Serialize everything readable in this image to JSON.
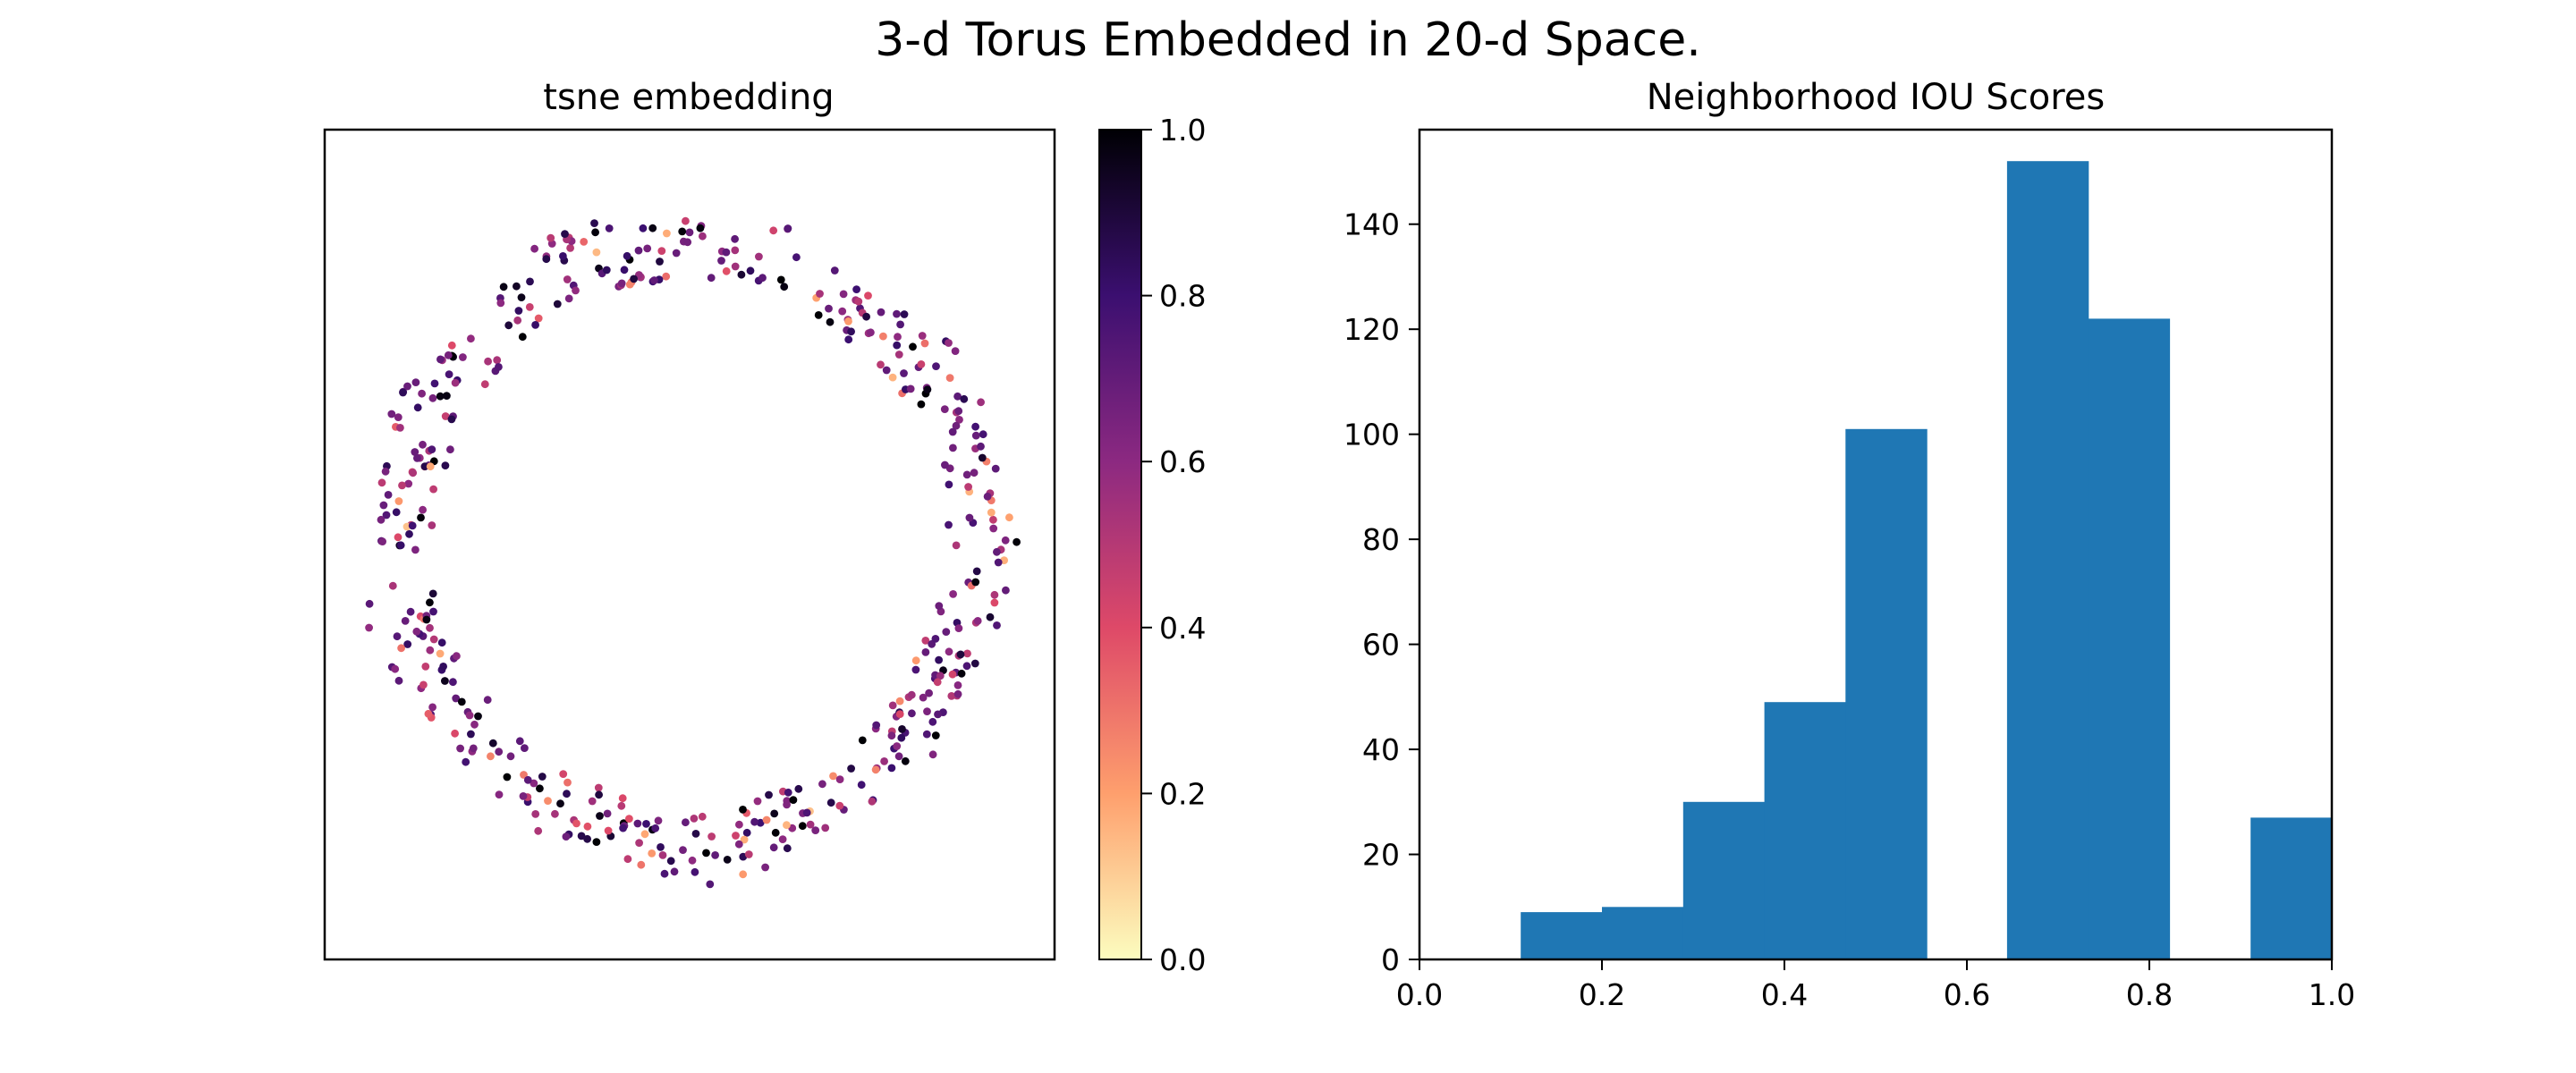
{
  "figure": {
    "suptitle": "3-d Torus Embedded in 20-d Space."
  },
  "chart_data": [
    {
      "type": "scatter",
      "title": "tsne embedding",
      "xlabel": "",
      "ylabel": "",
      "axis_ticks": "hidden",
      "grid": false,
      "point_count": 500,
      "shape": "ring (annulus) of points; sparse empty center",
      "color_by": "neighborhood IOU score",
      "colormap": "magma_r",
      "colorbar": {
        "range": [
          0.0,
          1.0
        ],
        "ticks": [
          "0.0",
          "0.2",
          "0.4",
          "0.6",
          "0.8",
          "1.0"
        ],
        "colors": [
          "#fcfdbf",
          "#fe9f6d",
          "#de4968",
          "#8c2981",
          "#3b0f70",
          "#000004"
        ]
      },
      "description": "500 points arranged in a noisy annulus around the axes center, each colored by its IOU score (mostly 0.5-0.9, purple/magenta, a few near 0.1-0.3 orange and near 1.0 black)."
    },
    {
      "type": "bar",
      "subtype": "histogram",
      "title": "Neighborhood IOU Scores",
      "xlabel": "",
      "ylabel": "",
      "xlim": [
        0.0,
        1.0
      ],
      "ylim": [
        0,
        158
      ],
      "xticks": [
        "0.0",
        "0.2",
        "0.4",
        "0.6",
        "0.8",
        "1.0"
      ],
      "yticks": [
        "0",
        "20",
        "40",
        "60",
        "80",
        "100",
        "120",
        "140"
      ],
      "bar_color": "#1f77b4",
      "bins": [
        {
          "start": 0.111,
          "end": 0.2,
          "count": 9
        },
        {
          "start": 0.2,
          "end": 0.289,
          "count": 10
        },
        {
          "start": 0.289,
          "end": 0.378,
          "count": 30
        },
        {
          "start": 0.378,
          "end": 0.467,
          "count": 49
        },
        {
          "start": 0.467,
          "end": 0.556,
          "count": 101
        },
        {
          "start": 0.556,
          "end": 0.644,
          "count": 0
        },
        {
          "start": 0.644,
          "end": 0.733,
          "count": 152
        },
        {
          "start": 0.733,
          "end": 0.822,
          "count": 122
        },
        {
          "start": 0.822,
          "end": 0.911,
          "count": 0
        },
        {
          "start": 0.911,
          "end": 1.0,
          "count": 27
        }
      ],
      "grid": false
    }
  ]
}
